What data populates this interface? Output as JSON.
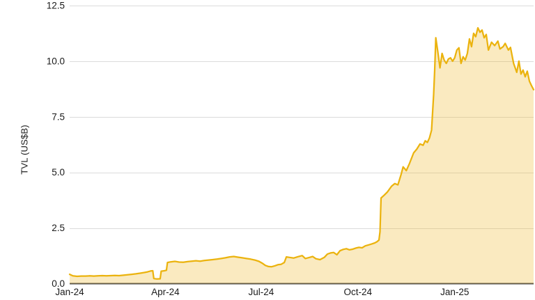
{
  "chart_data": {
    "type": "area",
    "title": "",
    "xlabel": "",
    "ylabel": "TVL (US$B)",
    "ylim": [
      0,
      12.5
    ],
    "grid": true,
    "legend": "none",
    "y_ticks": [
      {
        "value": 0.0,
        "label": "0.0"
      },
      {
        "value": 2.5,
        "label": "2.5"
      },
      {
        "value": 5.0,
        "label": "5.0"
      },
      {
        "value": 7.5,
        "label": "7.5"
      },
      {
        "value": 10.0,
        "label": "10.0"
      },
      {
        "value": 12.5,
        "label": "12.5"
      }
    ],
    "x_ticks": [
      {
        "date": "2024-01-01",
        "label": "Jan-24"
      },
      {
        "date": "2024-04-01",
        "label": "Apr-24"
      },
      {
        "date": "2024-07-01",
        "label": "Jul-24"
      },
      {
        "date": "2024-10-01",
        "label": "Oct-24"
      },
      {
        "date": "2025-01-01",
        "label": "Jan-25"
      }
    ],
    "x_range": [
      "2024-01-01",
      "2025-03-17"
    ],
    "colors": {
      "line": "#EBB30E",
      "fill": "#EDB41E",
      "fill_opacity": 0.28,
      "grid": "#DBDBDB",
      "axis": "#4D4D4D",
      "text": "#1A1A1A"
    },
    "series": [
      {
        "name": "TVL",
        "points": [
          [
            "2024-01-01",
            0.42
          ],
          [
            "2024-01-04",
            0.35
          ],
          [
            "2024-01-08",
            0.33
          ],
          [
            "2024-01-12",
            0.34
          ],
          [
            "2024-01-16",
            0.34
          ],
          [
            "2024-01-20",
            0.35
          ],
          [
            "2024-01-24",
            0.34
          ],
          [
            "2024-01-28",
            0.35
          ],
          [
            "2024-02-01",
            0.36
          ],
          [
            "2024-02-05",
            0.35
          ],
          [
            "2024-02-09",
            0.36
          ],
          [
            "2024-02-13",
            0.37
          ],
          [
            "2024-02-17",
            0.36
          ],
          [
            "2024-02-21",
            0.38
          ],
          [
            "2024-02-25",
            0.4
          ],
          [
            "2024-02-29",
            0.42
          ],
          [
            "2024-03-04",
            0.44
          ],
          [
            "2024-03-08",
            0.47
          ],
          [
            "2024-03-12",
            0.5
          ],
          [
            "2024-03-15",
            0.53
          ],
          [
            "2024-03-18",
            0.57
          ],
          [
            "2024-03-20",
            0.58
          ],
          [
            "2024-03-21",
            0.23
          ],
          [
            "2024-03-24",
            0.21
          ],
          [
            "2024-03-27",
            0.22
          ],
          [
            "2024-03-28",
            0.56
          ],
          [
            "2024-03-31",
            0.58
          ],
          [
            "2024-04-02",
            0.6
          ],
          [
            "2024-04-03",
            0.95
          ],
          [
            "2024-04-06",
            0.98
          ],
          [
            "2024-04-10",
            1.0
          ],
          [
            "2024-04-14",
            0.97
          ],
          [
            "2024-04-18",
            0.96
          ],
          [
            "2024-04-22",
            0.99
          ],
          [
            "2024-04-26",
            1.01
          ],
          [
            "2024-04-30",
            1.03
          ],
          [
            "2024-05-04",
            1.01
          ],
          [
            "2024-05-08",
            1.04
          ],
          [
            "2024-05-12",
            1.06
          ],
          [
            "2024-05-16",
            1.08
          ],
          [
            "2024-05-20",
            1.1
          ],
          [
            "2024-05-24",
            1.13
          ],
          [
            "2024-05-28",
            1.16
          ],
          [
            "2024-06-01",
            1.2
          ],
          [
            "2024-06-05",
            1.22
          ],
          [
            "2024-06-09",
            1.19
          ],
          [
            "2024-06-13",
            1.16
          ],
          [
            "2024-06-17",
            1.13
          ],
          [
            "2024-06-21",
            1.1
          ],
          [
            "2024-06-25",
            1.06
          ],
          [
            "2024-06-29",
            1.0
          ],
          [
            "2024-07-02",
            0.92
          ],
          [
            "2024-07-05",
            0.82
          ],
          [
            "2024-07-08",
            0.77
          ],
          [
            "2024-07-11",
            0.76
          ],
          [
            "2024-07-14",
            0.8
          ],
          [
            "2024-07-17",
            0.85
          ],
          [
            "2024-07-20",
            0.87
          ],
          [
            "2024-07-23",
            0.95
          ],
          [
            "2024-07-25",
            1.2
          ],
          [
            "2024-07-28",
            1.18
          ],
          [
            "2024-08-01",
            1.15
          ],
          [
            "2024-08-05",
            1.21
          ],
          [
            "2024-08-09",
            1.26
          ],
          [
            "2024-08-12",
            1.13
          ],
          [
            "2024-08-16",
            1.18
          ],
          [
            "2024-08-19",
            1.22
          ],
          [
            "2024-08-22",
            1.12
          ],
          [
            "2024-08-26",
            1.08
          ],
          [
            "2024-08-30",
            1.18
          ],
          [
            "2024-09-02",
            1.33
          ],
          [
            "2024-09-05",
            1.38
          ],
          [
            "2024-09-08",
            1.4
          ],
          [
            "2024-09-11",
            1.3
          ],
          [
            "2024-09-14",
            1.48
          ],
          [
            "2024-09-17",
            1.54
          ],
          [
            "2024-09-20",
            1.57
          ],
          [
            "2024-09-23",
            1.52
          ],
          [
            "2024-09-26",
            1.55
          ],
          [
            "2024-09-29",
            1.6
          ],
          [
            "2024-10-02",
            1.63
          ],
          [
            "2024-10-05",
            1.61
          ],
          [
            "2024-10-08",
            1.7
          ],
          [
            "2024-10-11",
            1.74
          ],
          [
            "2024-10-14",
            1.78
          ],
          [
            "2024-10-17",
            1.83
          ],
          [
            "2024-10-19",
            1.88
          ],
          [
            "2024-10-21",
            1.96
          ],
          [
            "2024-10-22",
            2.33
          ],
          [
            "2024-10-23",
            3.85
          ],
          [
            "2024-10-26",
            3.98
          ],
          [
            "2024-10-29",
            4.12
          ],
          [
            "2024-11-02",
            4.38
          ],
          [
            "2024-11-05",
            4.5
          ],
          [
            "2024-11-08",
            4.44
          ],
          [
            "2024-11-11",
            4.9
          ],
          [
            "2024-11-13",
            5.25
          ],
          [
            "2024-11-16",
            5.08
          ],
          [
            "2024-11-19",
            5.4
          ],
          [
            "2024-11-23",
            5.88
          ],
          [
            "2024-11-26",
            6.05
          ],
          [
            "2024-11-29",
            6.28
          ],
          [
            "2024-12-02",
            6.22
          ],
          [
            "2024-12-04",
            6.42
          ],
          [
            "2024-12-06",
            6.35
          ],
          [
            "2024-12-08",
            6.55
          ],
          [
            "2024-12-10",
            6.9
          ],
          [
            "2024-12-12",
            8.5
          ],
          [
            "2024-12-13",
            9.6
          ],
          [
            "2024-12-14",
            11.05
          ],
          [
            "2024-12-16",
            10.4
          ],
          [
            "2024-12-18",
            9.7
          ],
          [
            "2024-12-20",
            10.35
          ],
          [
            "2024-12-22",
            10.05
          ],
          [
            "2024-12-24",
            9.9
          ],
          [
            "2024-12-26",
            10.1
          ],
          [
            "2024-12-28",
            10.15
          ],
          [
            "2024-12-30",
            10.0
          ],
          [
            "2025-01-01",
            10.15
          ],
          [
            "2025-01-03",
            10.5
          ],
          [
            "2025-01-05",
            10.6
          ],
          [
            "2025-01-07",
            9.9
          ],
          [
            "2025-01-09",
            10.2
          ],
          [
            "2025-01-11",
            10.05
          ],
          [
            "2025-01-13",
            10.35
          ],
          [
            "2025-01-15",
            11.0
          ],
          [
            "2025-01-17",
            10.65
          ],
          [
            "2025-01-19",
            11.25
          ],
          [
            "2025-01-21",
            11.1
          ],
          [
            "2025-01-23",
            11.5
          ],
          [
            "2025-01-25",
            11.3
          ],
          [
            "2025-01-27",
            11.4
          ],
          [
            "2025-01-29",
            11.05
          ],
          [
            "2025-01-31",
            11.2
          ],
          [
            "2025-02-02",
            10.5
          ],
          [
            "2025-02-05",
            10.85
          ],
          [
            "2025-02-08",
            10.7
          ],
          [
            "2025-02-11",
            10.9
          ],
          [
            "2025-02-13",
            10.55
          ],
          [
            "2025-02-16",
            10.65
          ],
          [
            "2025-02-18",
            10.8
          ],
          [
            "2025-02-21",
            10.5
          ],
          [
            "2025-02-23",
            10.62
          ],
          [
            "2025-02-26",
            9.9
          ],
          [
            "2025-03-01",
            9.5
          ],
          [
            "2025-03-03",
            10.0
          ],
          [
            "2025-03-05",
            9.42
          ],
          [
            "2025-03-07",
            9.6
          ],
          [
            "2025-03-09",
            9.3
          ],
          [
            "2025-03-11",
            9.55
          ],
          [
            "2025-03-13",
            9.1
          ],
          [
            "2025-03-15",
            8.9
          ],
          [
            "2025-03-17",
            8.72
          ]
        ]
      }
    ]
  }
}
